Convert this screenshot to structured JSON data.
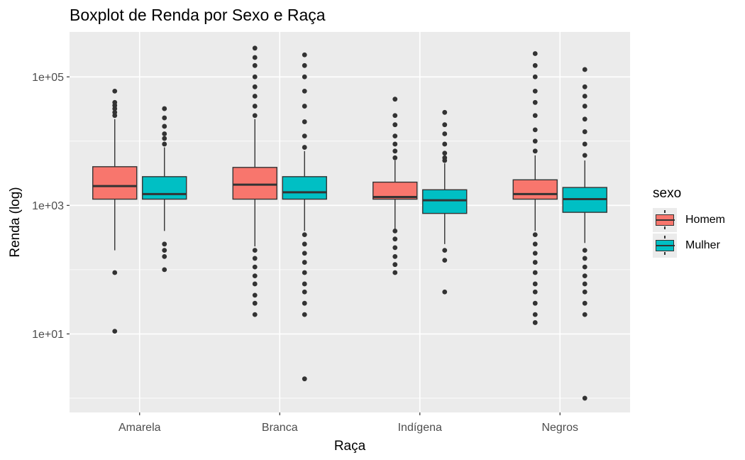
{
  "chart_data": {
    "type": "boxplot",
    "title": "Boxplot de Renda por Sexo e Raça",
    "xlabel": "Raça",
    "ylabel": "Renda (log)",
    "y_scale": "log10",
    "ylim": [
      0.6,
      500000
    ],
    "y_ticks": [
      10,
      1000,
      100000
    ],
    "y_tick_labels": [
      "1e+01",
      "1e+03",
      "1e+05"
    ],
    "categories": [
      "Amarela",
      "Branca",
      "Indígena",
      "Negros"
    ],
    "legend_title": "sexo",
    "legend_position": "right",
    "series": [
      {
        "name": "Homem",
        "color": "#F8766D",
        "boxes": [
          {
            "lower_whisker": 200,
            "q1": 1250,
            "median": 2000,
            "q3": 4000,
            "upper_whisker": 22000,
            "outliers": [
              11,
              90,
              25000,
              28000,
              32000,
              36000,
              40000,
              60000
            ]
          },
          {
            "lower_whisker": 230,
            "q1": 1250,
            "median": 2100,
            "q3": 3900,
            "upper_whisker": 22000,
            "outliers": [
              20,
              30,
              40,
              60,
              80,
              110,
              150,
              200,
              25000,
              35000,
              50000,
              70000,
              100000,
              150000,
              200000,
              280000
            ]
          },
          {
            "lower_whisker": 420,
            "q1": 1250,
            "median": 1350,
            "q3": 2300,
            "upper_whisker": 5000,
            "outliers": [
              90,
              120,
              160,
              220,
              300,
              400,
              5500,
              7000,
              9000,
              12000,
              18000,
              25000,
              45000
            ]
          },
          {
            "lower_whisker": 400,
            "q1": 1250,
            "median": 1500,
            "q3": 2500,
            "upper_whisker": 6000,
            "outliers": [
              15,
              20,
              30,
              45,
              60,
              90,
              130,
              180,
              250,
              350,
              7000,
              10000,
              15000,
              25000,
              40000,
              60000,
              100000,
              150000,
              230000
            ]
          }
        ]
      },
      {
        "name": "Mulher",
        "color": "#00BFC4",
        "boxes": [
          {
            "lower_whisker": 400,
            "q1": 1250,
            "median": 1500,
            "q3": 2800,
            "upper_whisker": 8000,
            "outliers": [
              100,
              160,
              200,
              250,
              9000,
              11000,
              13000,
              17000,
              23000,
              32000
            ]
          },
          {
            "lower_whisker": 400,
            "q1": 1250,
            "median": 1600,
            "q3": 2800,
            "upper_whisker": 7000,
            "outliers": [
              2,
              20,
              30,
              45,
              60,
              90,
              130,
              180,
              250,
              350,
              8000,
              12000,
              20000,
              35000,
              60000,
              100000,
              150000,
              220000
            ]
          },
          {
            "lower_whisker": 250,
            "q1": 750,
            "median": 1200,
            "q3": 1750,
            "upper_whisker": 4500,
            "outliers": [
              45,
              140,
              200,
              5000,
              5500,
              6500,
              9000,
              13000,
              18000,
              28000
            ]
          },
          {
            "lower_whisker": 260,
            "q1": 780,
            "median": 1250,
            "q3": 1900,
            "upper_whisker": 5000,
            "outliers": [
              1,
              20,
              30,
              45,
              60,
              80,
              110,
              150,
              200,
              6000,
              9000,
              14000,
              22000,
              35000,
              50000,
              70000,
              130000
            ]
          }
        ]
      }
    ]
  }
}
